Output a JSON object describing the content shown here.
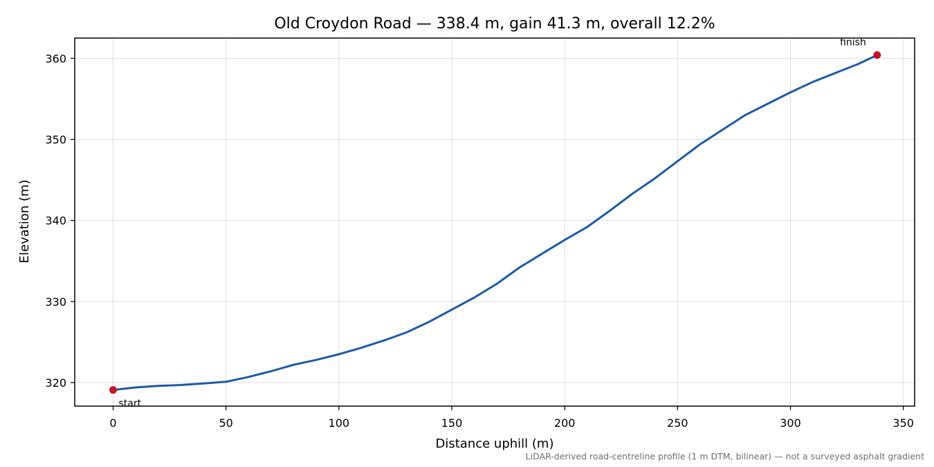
{
  "chart_data": {
    "type": "line",
    "title": "Old Croydon Road — 338.4 m, gain 41.3 m, overall 12.2%",
    "xlabel": "Distance uphill (m)",
    "ylabel": "Elevation (m)",
    "xlim": [
      -17,
      355
    ],
    "ylim": [
      317.1,
      362.5
    ],
    "x_ticks": [
      0,
      50,
      100,
      150,
      200,
      250,
      300,
      350
    ],
    "y_ticks": [
      320,
      330,
      340,
      350,
      360
    ],
    "grid": true,
    "line_color": "#1f5aa6",
    "marker_color": "#c0182a",
    "series": [
      {
        "x": [
          0,
          10,
          20,
          30,
          40,
          50,
          60,
          70,
          80,
          90,
          100,
          110,
          120,
          130,
          140,
          150,
          160,
          170,
          180,
          190,
          200,
          210,
          220,
          230,
          240,
          250,
          260,
          270,
          280,
          290,
          300,
          310,
          320,
          330,
          338.4
        ],
        "values": [
          319.1,
          319.4,
          319.6,
          319.7,
          319.9,
          320.1,
          320.7,
          321.4,
          322.2,
          322.8,
          323.5,
          324.3,
          325.2,
          326.2,
          327.5,
          329.0,
          330.5,
          332.2,
          334.2,
          335.9,
          337.6,
          339.2,
          341.2,
          343.3,
          345.2,
          347.3,
          349.4,
          351.2,
          353.0,
          354.4,
          355.8,
          357.1,
          358.2,
          359.3,
          360.4
        ]
      }
    ],
    "annotations": [
      {
        "label": "start",
        "x": 0,
        "y": 319.1
      },
      {
        "label": "finish",
        "x": 338.4,
        "y": 360.4
      }
    ]
  },
  "footnote": "LiDAR-derived road-centreline profile (1 m DTM, bilinear) — not a surveyed asphalt gradient"
}
